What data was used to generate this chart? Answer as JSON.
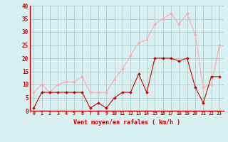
{
  "x": [
    0,
    1,
    2,
    3,
    4,
    5,
    6,
    7,
    8,
    9,
    10,
    11,
    12,
    13,
    14,
    15,
    16,
    17,
    18,
    19,
    20,
    21,
    22,
    23
  ],
  "wind_avg": [
    1,
    7,
    7,
    7,
    7,
    7,
    7,
    1,
    3,
    1,
    5,
    7,
    7,
    14,
    7,
    20,
    20,
    20,
    19,
    20,
    9,
    3,
    13,
    13
  ],
  "wind_gust": [
    7,
    10,
    7,
    10,
    11,
    11,
    13,
    7,
    7,
    7,
    12,
    16,
    21,
    26,
    27,
    33,
    35,
    37,
    33,
    37,
    29,
    9,
    10,
    25
  ],
  "avg_color": "#cc0000",
  "gust_color": "#ffaaaa",
  "bg_color": "#d9f0f0",
  "grid_color": "#aacccc",
  "xlabel": "Vent moyen/en rafales ( km/h )",
  "ylim": [
    0,
    40
  ],
  "yticks": [
    0,
    5,
    10,
    15,
    20,
    25,
    30,
    35,
    40
  ],
  "tick_color": "#cc0000",
  "label_color": "#cc0000",
  "spine_color": "#cc0000"
}
